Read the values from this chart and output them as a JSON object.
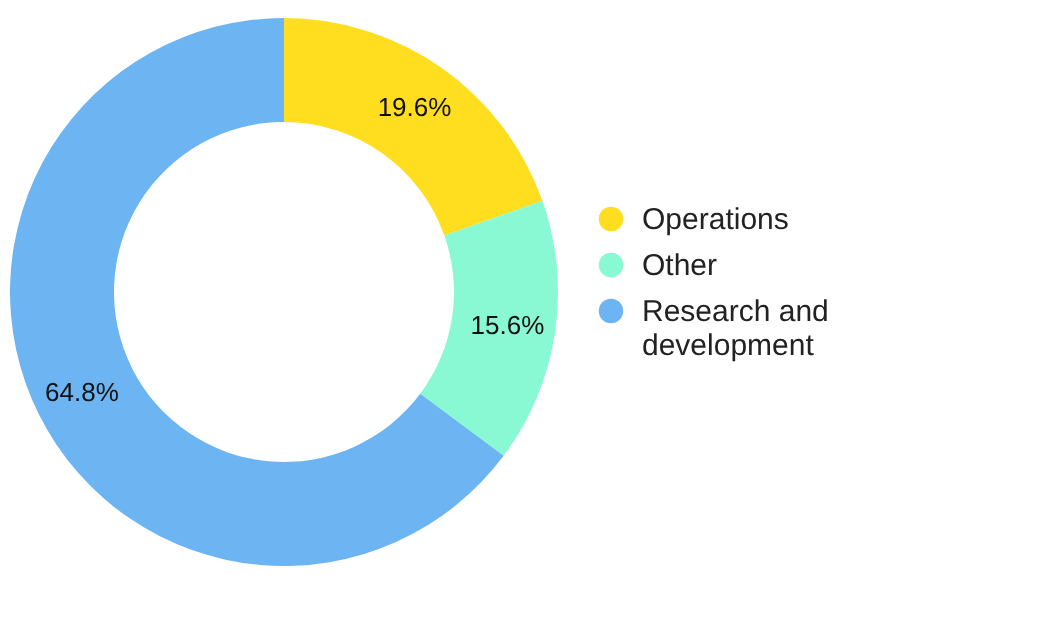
{
  "chart_data": {
    "type": "donut",
    "categories": [
      "Operations",
      "Other",
      "Research and development"
    ],
    "values": [
      19.6,
      15.6,
      64.8
    ],
    "colors": [
      "#ffdd1f",
      "#88f9d3",
      "#6cb5f2"
    ],
    "value_labels": [
      "19.6%",
      "15.6%",
      "64.8%"
    ],
    "legend": "right"
  }
}
